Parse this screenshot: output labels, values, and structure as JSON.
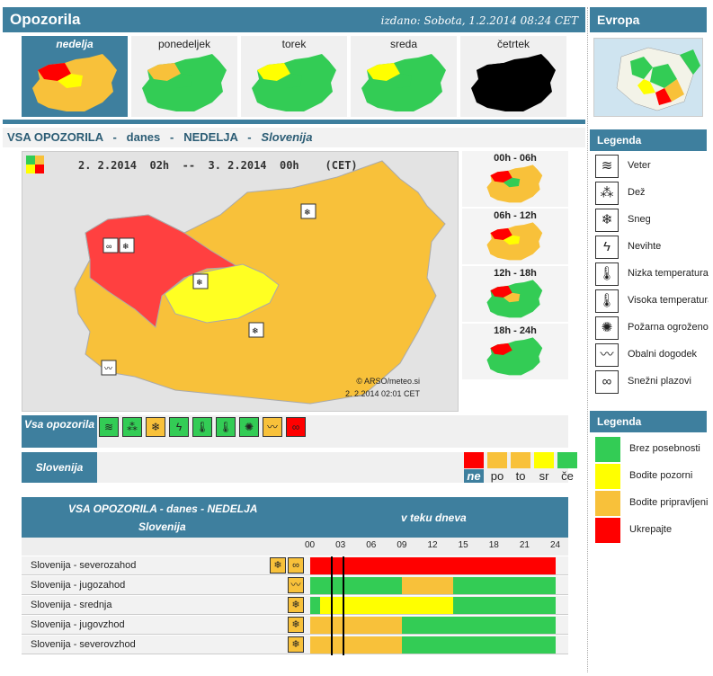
{
  "header": {
    "title": "Opozorila",
    "issued": "izdano: Sobota, 1.2.2014 08:24 CET"
  },
  "days": [
    "nedelja",
    "ponedeljek",
    "torek",
    "sreda",
    "četrtek"
  ],
  "europe": {
    "title": "Evropa"
  },
  "section": {
    "prefix": "VSA OPOZORILA   -   danes   -   NEDELJA   -   ",
    "region": "Slovenija"
  },
  "map": {
    "period": "2. 2.2014  02h  --  3. 2.2014  00h    (CET)",
    "copyright": "© ARSO/meteo.si",
    "stamp": "2. 2.2014  02:01 CET"
  },
  "periods": [
    "00h - 06h",
    "06h - 12h",
    "12h - 18h",
    "18h - 24h"
  ],
  "legend1": {
    "title": "Legenda",
    "items": [
      {
        "icon": "wind-icon",
        "glyph": "≋",
        "label": "Veter"
      },
      {
        "icon": "rain-icon",
        "glyph": "⁂",
        "label": "Dež"
      },
      {
        "icon": "snow-icon",
        "glyph": "❄",
        "label": "Sneg"
      },
      {
        "icon": "thunder-icon",
        "glyph": "ϟ",
        "label": "Nevihte"
      },
      {
        "icon": "low-temp-icon",
        "glyph": "🌡",
        "label": "Nizka temperatura"
      },
      {
        "icon": "high-temp-icon",
        "glyph": "🌡",
        "label": "Visoka temperatura"
      },
      {
        "icon": "fire-icon",
        "glyph": "✺",
        "label": "Požarna ogroženost"
      },
      {
        "icon": "coastal-icon",
        "glyph": "〰",
        "label": "Obalni dogodek"
      },
      {
        "icon": "snowdrift-icon",
        "glyph": "∞",
        "label": "Snežni plazovi"
      }
    ]
  },
  "legend2": {
    "title": "Legenda",
    "items": [
      {
        "color": "#33cc55",
        "label": "Brez posebnosti"
      },
      {
        "color": "#ffff00",
        "label": "Bodite pozorni"
      },
      {
        "color": "#f8c13a",
        "label": "Bodite pripravljeni"
      },
      {
        "color": "#ff0000",
        "label": "Ukrepajte"
      }
    ]
  },
  "vsa_label": "Vsa opozorila",
  "slo_label": "Slovenija",
  "type_icons": [
    {
      "name": "wind-icon",
      "glyph": "≋",
      "color": "#33cc55"
    },
    {
      "name": "rain-icon",
      "glyph": "⁂",
      "color": "#33cc55"
    },
    {
      "name": "snow-icon",
      "glyph": "❄",
      "color": "#f8c13a"
    },
    {
      "name": "thunder-icon",
      "glyph": "ϟ",
      "color": "#33cc55"
    },
    {
      "name": "low-temp-icon",
      "glyph": "🌡",
      "color": "#33cc55"
    },
    {
      "name": "high-temp-icon",
      "glyph": "🌡",
      "color": "#33cc55"
    },
    {
      "name": "fire-icon",
      "glyph": "✺",
      "color": "#33cc55"
    },
    {
      "name": "coastal-icon",
      "glyph": "〰",
      "color": "#f8c13a"
    },
    {
      "name": "snowdrift-icon",
      "glyph": "∞",
      "color": "#ff0000"
    }
  ],
  "day_colors": {
    "labels": [
      "ne",
      "po",
      "to",
      "sr",
      "če"
    ],
    "colors": [
      "#ff0000",
      "#f8c13a",
      "#f8c13a",
      "#ffff00",
      "#33cc55"
    ]
  },
  "table": {
    "header_a": "VSA OPOZORILA - danes - NEDELJA",
    "header_b": "Slovenija",
    "header_c": "v teku dneva",
    "hours": [
      "00",
      "03",
      "06",
      "09",
      "12",
      "15",
      "18",
      "21",
      "24"
    ],
    "rows": [
      {
        "name": "Slovenija - severozahod",
        "icons": [
          "snow-icon",
          "snowdrift-icon"
        ],
        "segments": [
          {
            "from": 0,
            "to": 24,
            "color": "#ff0000"
          }
        ]
      },
      {
        "name": "Slovenija - jugozahod",
        "icons": [
          "coastal-icon"
        ],
        "segments": [
          {
            "from": 0,
            "to": 9,
            "color": "#33cc55"
          },
          {
            "from": 9,
            "to": 14,
            "color": "#f8c13a"
          },
          {
            "from": 14,
            "to": 24,
            "color": "#33cc55"
          }
        ]
      },
      {
        "name": "Slovenija - srednja",
        "icons": [
          "snow-icon"
        ],
        "segments": [
          {
            "from": 0,
            "to": 1,
            "color": "#33cc55"
          },
          {
            "from": 1,
            "to": 14,
            "color": "#ffff00"
          },
          {
            "from": 14,
            "to": 24,
            "color": "#33cc55"
          }
        ]
      },
      {
        "name": "Slovenija - jugovzhod",
        "icons": [
          "snow-icon"
        ],
        "segments": [
          {
            "from": 0,
            "to": 9,
            "color": "#f8c13a"
          },
          {
            "from": 9,
            "to": 24,
            "color": "#33cc55"
          }
        ]
      },
      {
        "name": "Slovenija - severovzhod",
        "icons": [
          "snow-icon"
        ],
        "segments": [
          {
            "from": 0,
            "to": 9,
            "color": "#f8c13a"
          },
          {
            "from": 9,
            "to": 24,
            "color": "#33cc55"
          }
        ]
      }
    ]
  }
}
